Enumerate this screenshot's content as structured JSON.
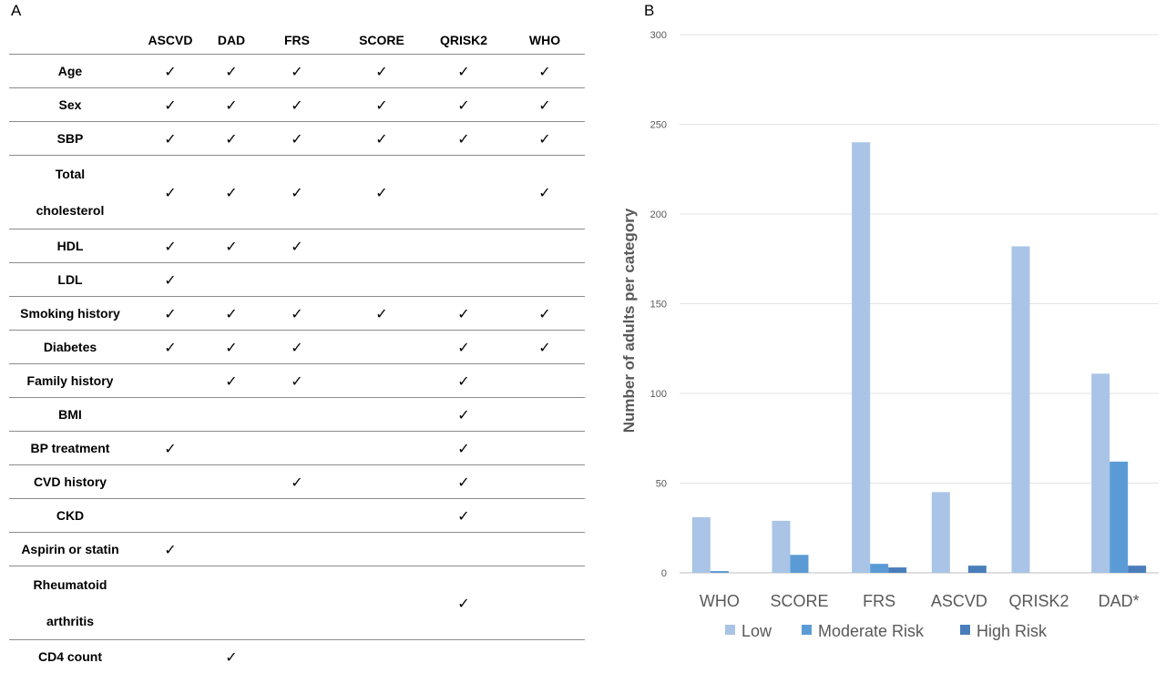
{
  "panel_a": {
    "label": "A",
    "columns": [
      "ASCVD",
      "DAD",
      "FRS",
      "SCORE",
      "QRISK2",
      "WHO"
    ],
    "check_symbol": "✓",
    "rows": [
      {
        "label": [
          "Age"
        ],
        "checks": [
          true,
          true,
          true,
          true,
          true,
          true
        ]
      },
      {
        "label": [
          "Sex"
        ],
        "checks": [
          true,
          true,
          true,
          true,
          true,
          true
        ]
      },
      {
        "label": [
          "SBP"
        ],
        "checks": [
          true,
          true,
          true,
          true,
          true,
          true
        ]
      },
      {
        "label": [
          "Total",
          "cholesterol"
        ],
        "checks": [
          true,
          true,
          true,
          true,
          false,
          true
        ]
      },
      {
        "label": [
          "HDL"
        ],
        "checks": [
          true,
          true,
          true,
          false,
          false,
          false
        ]
      },
      {
        "label": [
          "LDL"
        ],
        "checks": [
          true,
          false,
          false,
          false,
          false,
          false
        ]
      },
      {
        "label": [
          "Smoking history"
        ],
        "checks": [
          true,
          true,
          true,
          true,
          true,
          true
        ]
      },
      {
        "label": [
          "Diabetes"
        ],
        "checks": [
          true,
          true,
          true,
          false,
          true,
          true
        ]
      },
      {
        "label": [
          "Family history"
        ],
        "checks": [
          false,
          true,
          true,
          false,
          true,
          false
        ]
      },
      {
        "label": [
          "BMI"
        ],
        "checks": [
          false,
          false,
          false,
          false,
          true,
          false
        ]
      },
      {
        "label": [
          "BP treatment"
        ],
        "checks": [
          true,
          false,
          false,
          false,
          true,
          false
        ]
      },
      {
        "label": [
          "CVD history"
        ],
        "checks": [
          false,
          false,
          true,
          false,
          true,
          false
        ]
      },
      {
        "label": [
          "CKD"
        ],
        "checks": [
          false,
          false,
          false,
          false,
          true,
          false
        ]
      },
      {
        "label": [
          "Aspirin or statin"
        ],
        "checks": [
          true,
          false,
          false,
          false,
          false,
          false
        ]
      },
      {
        "label": [
          "Rheumatoid",
          "arthritis"
        ],
        "checks": [
          false,
          false,
          false,
          false,
          true,
          false
        ]
      },
      {
        "label": [
          "CD4 count"
        ],
        "checks": [
          false,
          true,
          false,
          false,
          false,
          false
        ]
      }
    ]
  },
  "panel_b": {
    "label": "B"
  },
  "chart_data": {
    "type": "bar",
    "title": "",
    "ylabel": "Number of adults per category",
    "xlabel": "",
    "ylim": [
      0,
      300
    ],
    "yticks": [
      0,
      50,
      100,
      150,
      200,
      250,
      300
    ],
    "grid": true,
    "legend_position": "bottom",
    "categories": [
      "WHO",
      "SCORE",
      "FRS",
      "ASCVD",
      "QRISK2",
      "DAD*"
    ],
    "series": [
      {
        "name": "Low",
        "color": "#a9c4e6",
        "values": [
          31,
          29,
          240,
          45,
          182,
          111
        ]
      },
      {
        "name": "Moderate Risk",
        "color": "#5b9bd5",
        "values": [
          1,
          10,
          5,
          0,
          0,
          62
        ]
      },
      {
        "name": "High Risk",
        "color": "#4a7ebb",
        "values": [
          0,
          0,
          3,
          4,
          0,
          4
        ]
      }
    ]
  }
}
